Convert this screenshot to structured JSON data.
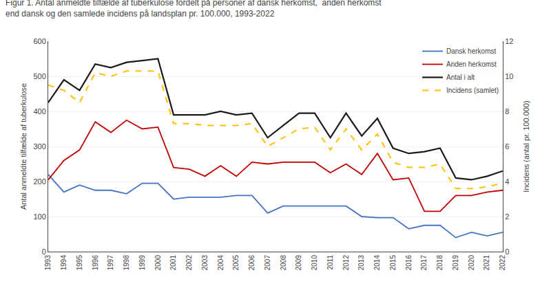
{
  "chart_data": {
    "type": "line",
    "title": "Figur 1. Antal anmeldte tilfælde af tuberkulose fordelt på personer af dansk herkomst,  anden herkomst",
    "subtitle": "end dansk og den samlede incidens på landsplan pr. 100.000, 1993-2022",
    "y_label": "Antal anmeldte tilfælde af tuberkulose",
    "y2_label": "Incidens (antal pr. 100.000)",
    "x": [
      1993,
      1994,
      1995,
      1996,
      1997,
      1998,
      1999,
      2000,
      2001,
      2002,
      2003,
      2004,
      2005,
      2006,
      2007,
      2008,
      2009,
      2010,
      2011,
      2012,
      2013,
      2014,
      2015,
      2016,
      2017,
      2018,
      2019,
      2020,
      2021,
      2022
    ],
    "xlim": [
      1993,
      2022
    ],
    "xticks": [
      1993,
      1994,
      1995,
      1996,
      1997,
      1998,
      1999,
      2000,
      2001,
      2002,
      2003,
      2004,
      2005,
      2006,
      2007,
      2008,
      2009,
      2010,
      2011,
      2012,
      2013,
      2014,
      2015,
      2016,
      2017,
      2018,
      2019,
      2020,
      2021,
      2022
    ],
    "ylim": [
      0,
      600
    ],
    "yticks": [
      0,
      100,
      200,
      300,
      400,
      500,
      600
    ],
    "y2lim": [
      0,
      12
    ],
    "y2ticks": [
      0,
      2,
      4,
      6,
      8,
      10,
      12
    ],
    "grid": true,
    "legend": "upper right",
    "series": [
      {
        "name": "Dansk herkomst",
        "color": "#4472c4",
        "line_style": "solid",
        "values": [
          220,
          170,
          190,
          175,
          175,
          165,
          195,
          195,
          150,
          155,
          155,
          155,
          160,
          160,
          110,
          130,
          130,
          130,
          130,
          130,
          100,
          97,
          97,
          65,
          75,
          75,
          40,
          55,
          45,
          55
        ]
      },
      {
        "name": "Anden herkomst",
        "color": "#c00000",
        "line_style": "solid",
        "values": [
          205,
          260,
          290,
          370,
          340,
          375,
          350,
          355,
          240,
          235,
          215,
          245,
          215,
          255,
          250,
          255,
          255,
          255,
          225,
          250,
          220,
          280,
          205,
          210,
          115,
          115,
          160,
          160,
          170,
          175
        ]
      },
      {
        "name": "Antal i alt",
        "color": "#1a1a1a",
        "line_style": "solid",
        "values": [
          425,
          490,
          460,
          535,
          525,
          540,
          545,
          550,
          390,
          390,
          390,
          400,
          390,
          395,
          325,
          360,
          395,
          395,
          325,
          395,
          330,
          380,
          295,
          280,
          285,
          295,
          210,
          205,
          215,
          230
        ]
      },
      {
        "name": "Incidens (samlet)",
        "color": "#ffc000",
        "line_style": "dashed",
        "axis": "y2",
        "values": [
          9.5,
          9.2,
          8.5,
          10.2,
          10.0,
          10.3,
          10.3,
          10.3,
          7.3,
          7.3,
          7.2,
          7.2,
          7.2,
          7.3,
          6.0,
          6.5,
          7.0,
          7.1,
          5.8,
          7.0,
          5.8,
          6.7,
          5.1,
          4.8,
          4.8,
          5.0,
          3.6,
          3.6,
          3.7,
          3.9
        ]
      }
    ]
  }
}
